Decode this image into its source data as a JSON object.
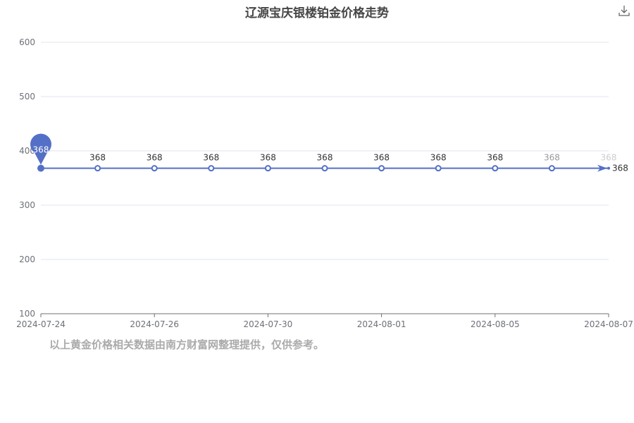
{
  "chart_data": {
    "type": "line",
    "title": "辽源宝庆银楼铂金价格走势",
    "categories": [
      "2024-07-24",
      "",
      "2024-07-26",
      "",
      "2024-07-30",
      "",
      "2024-08-01",
      "",
      "2024-08-05",
      "",
      "2024-08-07"
    ],
    "series": [
      {
        "values": [
          368,
          368,
          368,
          368,
          368,
          368,
          368,
          368,
          368,
          368,
          368
        ]
      }
    ],
    "ylim": [
      100,
      600
    ],
    "yticks": [
      100,
      200,
      300,
      400,
      500,
      600
    ],
    "grid": true,
    "mark_point": {
      "label": "368",
      "category": "2024-07-24"
    },
    "end_label": "368",
    "color": "#5470c6"
  },
  "footnote": "以上黄金价格相关数据由南方财富网整理提供，仅供参考。",
  "toolbox": {
    "icon": "download-icon"
  }
}
